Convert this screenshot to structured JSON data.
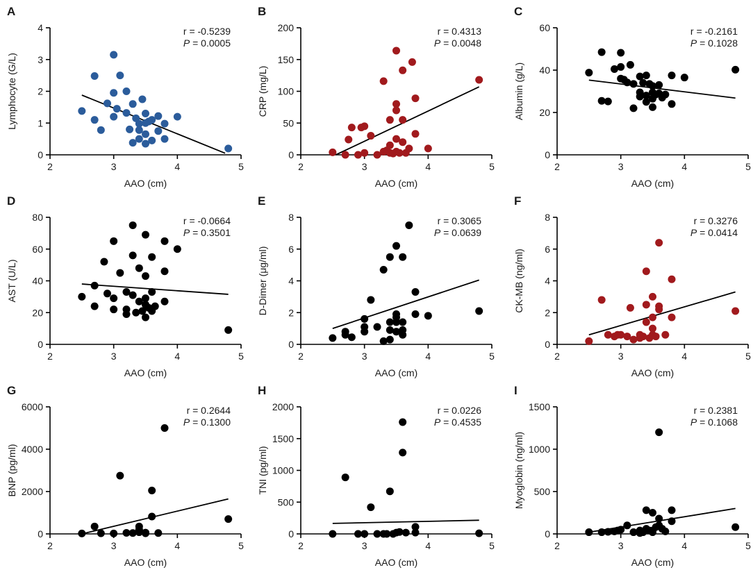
{
  "figure": {
    "colors": {
      "blue": "#2B5C9B",
      "red": "#A11A1D",
      "black": "#000000",
      "text": "#1a1a1a"
    }
  },
  "chart_data": [
    {
      "type": "scatter",
      "panel": "A",
      "xlabel": "AAO (cm)",
      "ylabel": "Lymphocyte  (G/L)",
      "xlim": [
        2,
        5
      ],
      "ylim": [
        0,
        4
      ],
      "xticks": [
        2,
        3,
        4,
        5
      ],
      "yticks": [
        0,
        1,
        2,
        3,
        4
      ],
      "r_text": "r = -0.5239",
      "p_label": "P",
      "p_value": "= 0.0005",
      "color": "#2B5C9B",
      "x": [
        2.5,
        2.7,
        2.7,
        2.8,
        2.9,
        3.0,
        3.0,
        3.0,
        3.05,
        3.1,
        3.2,
        3.2,
        3.25,
        3.3,
        3.3,
        3.35,
        3.4,
        3.4,
        3.4,
        3.45,
        3.5,
        3.5,
        3.5,
        3.5,
        3.55,
        3.6,
        3.6,
        3.7,
        3.7,
        3.8,
        3.8,
        4.0,
        4.8
      ],
      "y": [
        1.38,
        2.48,
        1.1,
        0.78,
        1.62,
        3.15,
        1.95,
        1.2,
        1.45,
        2.5,
        2.0,
        1.32,
        0.8,
        1.6,
        0.38,
        1.15,
        0.98,
        0.78,
        0.5,
        1.75,
        1.3,
        1.0,
        0.65,
        0.35,
        1.05,
        1.1,
        0.45,
        1.22,
        0.75,
        0.98,
        0.5,
        1.2,
        0.2
      ],
      "fit": {
        "x": [
          2.5,
          4.75
        ],
        "y": [
          1.88,
          0.05
        ]
      }
    },
    {
      "type": "scatter",
      "panel": "B",
      "xlabel": "AAO (cm)",
      "ylabel": "CRP (mg/L)",
      "xlim": [
        2,
        5
      ],
      "ylim": [
        0,
        200
      ],
      "xticks": [
        2,
        3,
        4,
        5
      ],
      "yticks": [
        0,
        50,
        100,
        150,
        200
      ],
      "r_text": "r = 0.4313",
      "p_label": "P",
      "p_value": "= 0.0048",
      "color": "#A11A1D",
      "x": [
        2.5,
        2.7,
        2.75,
        2.8,
        2.9,
        2.95,
        3.0,
        3.0,
        3.1,
        3.2,
        3.3,
        3.3,
        3.35,
        3.4,
        3.4,
        3.4,
        3.45,
        3.5,
        3.5,
        3.5,
        3.5,
        3.5,
        3.55,
        3.6,
        3.6,
        3.6,
        3.65,
        3.7,
        3.75,
        3.8,
        3.8,
        4.0,
        4.8
      ],
      "y": [
        4,
        0,
        24,
        43,
        0,
        43,
        3,
        45,
        30,
        0,
        116,
        5,
        7,
        55,
        15,
        3,
        2,
        164,
        80,
        70,
        25,
        5,
        3,
        133,
        55,
        20,
        3,
        10,
        146,
        33,
        89,
        10,
        118
      ],
      "fit": {
        "x": [
          2.55,
          4.8
        ],
        "y": [
          0,
          107
        ]
      }
    },
    {
      "type": "scatter",
      "panel": "C",
      "xlabel": "AAO (cm)",
      "ylabel": "Albumin (g/L)",
      "xlim": [
        2,
        5
      ],
      "ylim": [
        0,
        60
      ],
      "xticks": [
        2,
        3,
        4,
        5
      ],
      "yticks": [
        0,
        20,
        40,
        60
      ],
      "r_text": "r = -0.2161",
      "p_label": "P",
      "p_value": "= 0.1028",
      "color": "#000000",
      "x": [
        2.5,
        2.7,
        2.7,
        2.8,
        2.9,
        3.0,
        3.0,
        3.0,
        3.05,
        3.1,
        3.15,
        3.2,
        3.2,
        3.3,
        3.3,
        3.3,
        3.35,
        3.4,
        3.4,
        3.4,
        3.45,
        3.5,
        3.5,
        3.5,
        3.5,
        3.55,
        3.6,
        3.6,
        3.65,
        3.7,
        3.8,
        3.8,
        4.0,
        4.8
      ],
      "y": [
        38.8,
        48.5,
        25.5,
        25.2,
        40.5,
        48.2,
        41.5,
        36,
        35.5,
        34.2,
        42.5,
        33.5,
        22,
        37,
        29.5,
        27.5,
        34,
        37.5,
        28,
        25,
        33.5,
        32.5,
        29.5,
        26.5,
        22.5,
        28.5,
        33,
        29,
        27,
        28.5,
        37.5,
        24,
        36.5,
        40.2
      ],
      "fit": {
        "x": [
          2.5,
          4.8
        ],
        "y": [
          35.3,
          26.8
        ]
      }
    },
    {
      "type": "scatter",
      "panel": "D",
      "xlabel": "AAO (cm)",
      "ylabel": "AST (U/L)",
      "xlim": [
        2,
        5
      ],
      "ylim": [
        0,
        80
      ],
      "xticks": [
        2,
        3,
        4,
        5
      ],
      "yticks": [
        0,
        20,
        40,
        60,
        80
      ],
      "r_text": "r = -0.0664",
      "p_label": "P",
      "p_value": "= 0.3501",
      "color": "#000000",
      "x": [
        2.5,
        2.7,
        2.7,
        2.85,
        2.9,
        3.0,
        3.0,
        3.0,
        3.1,
        3.2,
        3.2,
        3.2,
        3.3,
        3.3,
        3.3,
        3.35,
        3.4,
        3.4,
        3.45,
        3.5,
        3.5,
        3.5,
        3.5,
        3.5,
        3.55,
        3.6,
        3.6,
        3.6,
        3.65,
        3.8,
        3.8,
        3.8,
        4.0,
        4.8
      ],
      "y": [
        30,
        37,
        24,
        52,
        32,
        65,
        29,
        22,
        45,
        33,
        22,
        19,
        75,
        56,
        31,
        20,
        48,
        27,
        21,
        69,
        43,
        29,
        25,
        17,
        23,
        55,
        33,
        21,
        24,
        65,
        46,
        27,
        60,
        9
      ],
      "fit": {
        "x": [
          2.5,
          4.8
        ],
        "y": [
          38,
          31.5
        ]
      }
    },
    {
      "type": "scatter",
      "panel": "E",
      "xlabel": "AAO (cm)",
      "ylabel": "D-Dimer  (μg/ml)",
      "xlim": [
        2,
        5
      ],
      "ylim": [
        0,
        8
      ],
      "xticks": [
        2,
        3,
        4,
        5
      ],
      "yticks": [
        0,
        2,
        4,
        6,
        8
      ],
      "r_text": "r = 0.3065",
      "p_label": "P",
      "p_value": "= 0.0639",
      "color": "#000000",
      "x": [
        2.5,
        2.7,
        2.7,
        2.8,
        3.0,
        3.0,
        3.0,
        3.1,
        3.2,
        3.3,
        3.3,
        3.4,
        3.4,
        3.4,
        3.4,
        3.5,
        3.5,
        3.5,
        3.5,
        3.5,
        3.6,
        3.6,
        3.6,
        3.6,
        3.7,
        3.8,
        3.8,
        4.0,
        4.8
      ],
      "y": [
        0.4,
        0.8,
        0.6,
        0.45,
        1.6,
        0.8,
        1.1,
        2.8,
        1.1,
        4.7,
        0.2,
        5.5,
        1.4,
        0.3,
        0.9,
        6.2,
        1.9,
        1.4,
        1.7,
        0.8,
        5.5,
        1.4,
        0.9,
        0.6,
        7.5,
        3.3,
        1.9,
        1.8,
        2.1
      ],
      "fit": {
        "x": [
          2.5,
          4.8
        ],
        "y": [
          1.0,
          4.05
        ]
      }
    },
    {
      "type": "scatter",
      "panel": "F",
      "xlabel": "AAO (cm)",
      "ylabel": "CK-MB (ng/ml)",
      "xlim": [
        2,
        5
      ],
      "ylim": [
        0,
        8
      ],
      "xticks": [
        2,
        3,
        4,
        5
      ],
      "yticks": [
        0,
        2,
        4,
        6,
        8
      ],
      "r_text": "r = 0.3276",
      "p_label": "P",
      "p_value": "= 0.0414",
      "color": "#A11A1D",
      "x": [
        2.5,
        2.7,
        2.8,
        2.9,
        2.95,
        3.0,
        3.1,
        3.15,
        3.2,
        3.3,
        3.3,
        3.35,
        3.4,
        3.4,
        3.4,
        3.45,
        3.5,
        3.5,
        3.5,
        3.5,
        3.55,
        3.6,
        3.6,
        3.6,
        3.7,
        3.8,
        3.8,
        4.8
      ],
      "y": [
        0.2,
        2.8,
        0.6,
        0.5,
        0.6,
        0.6,
        0.5,
        2.3,
        0.3,
        0.4,
        0.6,
        0.5,
        4.6,
        2.5,
        1.4,
        0.4,
        3.0,
        1.7,
        1.0,
        0.6,
        0.5,
        6.4,
        2.4,
        2.2,
        0.6,
        4.1,
        1.7,
        2.1
      ],
      "fit": {
        "x": [
          2.5,
          4.8
        ],
        "y": [
          0.6,
          3.3
        ]
      }
    },
    {
      "type": "scatter",
      "panel": "G",
      "xlabel": "AAO (cm)",
      "ylabel": "BNP (pg/ml)",
      "xlim": [
        2,
        5
      ],
      "ylim": [
        0,
        6000
      ],
      "xticks": [
        2,
        3,
        4,
        5
      ],
      "yticks": [
        0,
        2000,
        4000,
        6000
      ],
      "r_text": "r = 0.2644",
      "p_label": "P",
      "p_value": "= 0.1300",
      "color": "#000000",
      "x": [
        2.5,
        2.7,
        2.8,
        3.0,
        3.1,
        3.2,
        3.3,
        3.4,
        3.4,
        3.4,
        3.5,
        3.5,
        3.6,
        3.6,
        3.7,
        3.8,
        4.8
      ],
      "y": [
        20,
        350,
        30,
        20,
        2750,
        50,
        40,
        350,
        200,
        80,
        30,
        60,
        2050,
        820,
        40,
        5000,
        700
      ],
      "fit": {
        "x": [
          2.5,
          4.8
        ],
        "y": [
          0,
          1650
        ]
      }
    },
    {
      "type": "scatter",
      "panel": "H",
      "xlabel": "AAO (cm)",
      "ylabel": "TNI (pg/ml)",
      "xlim": [
        2,
        5
      ],
      "ylim": [
        0,
        2000
      ],
      "xticks": [
        2,
        3,
        4,
        5
      ],
      "yticks": [
        0,
        500,
        1000,
        1500,
        2000
      ],
      "r_text": "r = 0.0226",
      "p_label": "P",
      "p_value": "= 0.4535",
      "color": "#000000",
      "x": [
        2.5,
        2.7,
        2.9,
        3.0,
        3.1,
        3.2,
        3.3,
        3.35,
        3.4,
        3.45,
        3.5,
        3.55,
        3.6,
        3.6,
        3.65,
        3.8,
        3.8,
        4.8
      ],
      "y": [
        0,
        890,
        0,
        0,
        420,
        0,
        0,
        0,
        670,
        0,
        20,
        30,
        1760,
        1280,
        20,
        110,
        20,
        10
      ],
      "fit": {
        "x": [
          2.5,
          4.8
        ],
        "y": [
          165,
          215
        ]
      }
    },
    {
      "type": "scatter",
      "panel": "I",
      "xlabel": "AAO (cm)",
      "ylabel": "Myoglobin (ng/ml)",
      "xlim": [
        2,
        5
      ],
      "ylim": [
        0,
        1500
      ],
      "xticks": [
        2,
        3,
        4,
        5
      ],
      "yticks": [
        0,
        500,
        1000,
        1500
      ],
      "r_text": "r = 0.2381",
      "p_label": "P",
      "p_value": "= 0.1068",
      "color": "#000000",
      "x": [
        2.5,
        2.7,
        2.8,
        2.9,
        2.95,
        3.0,
        3.1,
        3.2,
        3.3,
        3.3,
        3.35,
        3.4,
        3.4,
        3.45,
        3.5,
        3.5,
        3.5,
        3.55,
        3.6,
        3.6,
        3.6,
        3.65,
        3.7,
        3.8,
        3.8,
        4.8
      ],
      "y": [
        20,
        20,
        25,
        30,
        40,
        50,
        100,
        20,
        40,
        10,
        20,
        280,
        60,
        40,
        250,
        40,
        20,
        80,
        1200,
        180,
        100,
        60,
        30,
        280,
        150,
        80
      ],
      "fit": {
        "x": [
          2.5,
          4.8
        ],
        "y": [
          20,
          300
        ]
      }
    }
  ]
}
